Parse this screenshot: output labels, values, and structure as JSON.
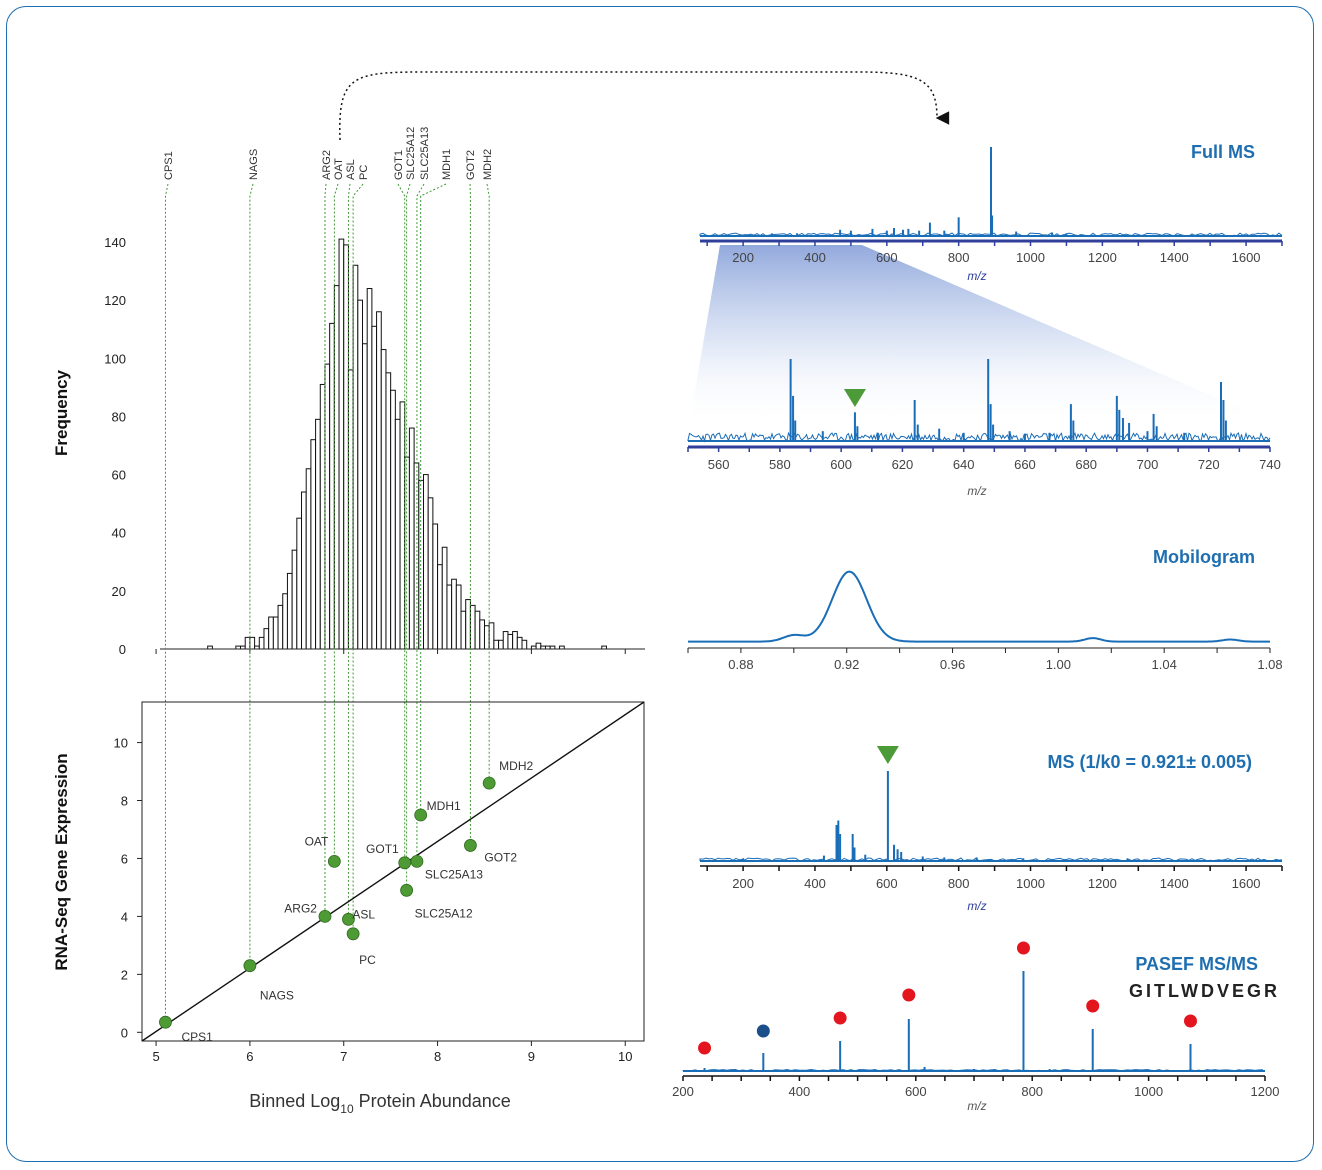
{
  "chart_data": [
    {
      "id": "histogram",
      "type": "bar",
      "ylabel": "Frequency",
      "xlim": [
        4.85,
        10.2
      ],
      "ylim": [
        0,
        140
      ],
      "yticks": [
        0,
        20,
        40,
        60,
        80,
        100,
        120,
        140
      ],
      "bin_start": 5.55,
      "bin_width": 0.05,
      "values": [
        1,
        0,
        0,
        0,
        0,
        0,
        1,
        1,
        4,
        4,
        1,
        4,
        7,
        11,
        11,
        15,
        19,
        26,
        34,
        45,
        54,
        62,
        72,
        79,
        91,
        98,
        112,
        125,
        141,
        139,
        96,
        132,
        120,
        105,
        124,
        111,
        116,
        103,
        95,
        89,
        79,
        85,
        66,
        76,
        64,
        58,
        60,
        52,
        43,
        29,
        35,
        22,
        24,
        22,
        13,
        17,
        15,
        13,
        10,
        8,
        9,
        3,
        3,
        6,
        5,
        6,
        4,
        3,
        0,
        1,
        2,
        1,
        1,
        1,
        0,
        1,
        0,
        0,
        0,
        0,
        0,
        0,
        0,
        0,
        1
      ],
      "proteins": [
        {
          "name": "CPS1",
          "x": 5.1
        },
        {
          "name": "NAGS",
          "x": 6.0
        },
        {
          "name": "ARG2",
          "x": 6.8
        },
        {
          "name": "OAT",
          "x": 6.9
        },
        {
          "name": "ASL",
          "x": 7.05
        },
        {
          "name": "PC",
          "x": 7.1
        },
        {
          "name": "GOT1",
          "x": 7.65
        },
        {
          "name": "SLC25A12",
          "x": 7.67
        },
        {
          "name": "SLC25A13",
          "x": 7.78
        },
        {
          "name": "MDH1",
          "x": 7.82
        },
        {
          "name": "GOT2",
          "x": 8.35
        },
        {
          "name": "MDH2",
          "x": 8.55
        }
      ]
    },
    {
      "id": "scatter",
      "type": "scatter",
      "xlabel_main": "Binned Log",
      "xlabel_sub": "10",
      "xlabel_tail": " Protein Abundance",
      "ylabel": "RNA-Seq Gene Expression",
      "xlim": [
        4.85,
        10.2
      ],
      "ylim": [
        -0.3,
        11.4
      ],
      "xticks": [
        5,
        6,
        7,
        8,
        9,
        10
      ],
      "yticks": [
        0,
        2,
        4,
        6,
        8,
        10
      ],
      "fit_line": [
        [
          4.85,
          -0.3
        ],
        [
          10.2,
          11.4
        ]
      ],
      "points": [
        {
          "name": "CPS1",
          "x": 5.1,
          "y": 0.35
        },
        {
          "name": "NAGS",
          "x": 6.0,
          "y": 2.3
        },
        {
          "name": "ARG2",
          "x": 6.8,
          "y": 4.0
        },
        {
          "name": "OAT",
          "x": 6.9,
          "y": 5.9
        },
        {
          "name": "ASL",
          "x": 7.05,
          "y": 3.9
        },
        {
          "name": "PC",
          "x": 7.1,
          "y": 3.4
        },
        {
          "name": "GOT1",
          "x": 7.65,
          "y": 5.85
        },
        {
          "name": "SLC25A12",
          "x": 7.67,
          "y": 4.9
        },
        {
          "name": "SLC25A13",
          "x": 7.78,
          "y": 5.9
        },
        {
          "name": "MDH1",
          "x": 7.82,
          "y": 7.5
        },
        {
          "name": "GOT2",
          "x": 8.35,
          "y": 6.45
        },
        {
          "name": "MDH2",
          "x": 8.55,
          "y": 8.6
        }
      ]
    },
    {
      "id": "full-ms",
      "type": "line",
      "title": "Full MS",
      "xlabel": "m/z",
      "xlim": [
        80,
        1700
      ],
      "xticks": [
        200,
        400,
        600,
        800,
        1000,
        1200,
        1400,
        1600
      ],
      "peaks": [
        [
          890,
          1.0
        ],
        [
          893,
          0.23
        ],
        [
          800,
          0.21
        ],
        [
          720,
          0.15
        ],
        [
          620,
          0.09
        ],
        [
          645,
          0.07
        ],
        [
          560,
          0.08
        ],
        [
          500,
          0.06
        ],
        [
          470,
          0.07
        ],
        [
          660,
          0.08
        ],
        [
          600,
          0.06
        ],
        [
          690,
          0.06
        ],
        [
          760,
          0.06
        ],
        [
          960,
          0.05
        ],
        [
          1060,
          0.04
        ],
        [
          280,
          0.03
        ],
        [
          350,
          0.03
        ],
        [
          1100,
          0.03
        ]
      ]
    },
    {
      "id": "zoom-ms",
      "type": "line",
      "xlabel": "m/z",
      "xlim": [
        550,
        740
      ],
      "xticks": [
        560,
        580,
        600,
        620,
        640,
        660,
        680,
        700,
        720,
        740
      ],
      "peaks": [
        [
          583.5,
          1.0
        ],
        [
          584.3,
          0.55
        ],
        [
          585,
          0.25
        ],
        [
          604.5,
          0.35
        ],
        [
          605.3,
          0.18
        ],
        [
          624,
          0.5
        ],
        [
          625,
          0.2
        ],
        [
          632,
          0.15
        ],
        [
          648,
          1.0
        ],
        [
          648.8,
          0.45
        ],
        [
          649.6,
          0.2
        ],
        [
          675,
          0.45
        ],
        [
          675.8,
          0.25
        ],
        [
          690,
          0.55
        ],
        [
          690.8,
          0.38
        ],
        [
          692,
          0.28
        ],
        [
          694,
          0.22
        ],
        [
          702,
          0.33
        ],
        [
          703,
          0.18
        ],
        [
          724,
          0.72
        ],
        [
          724.8,
          0.5
        ],
        [
          725.6,
          0.25
        ],
        [
          594,
          0.12
        ],
        [
          612,
          0.1
        ],
        [
          655,
          0.12
        ],
        [
          668,
          0.1
        ],
        [
          712,
          0.1
        ],
        [
          640,
          0.1
        ],
        [
          660,
          0.09
        ],
        [
          700,
          0.12
        ]
      ],
      "marker_x": 604.5
    },
    {
      "id": "mobilogram",
      "type": "line",
      "title": "Mobilogram",
      "xlim": [
        0.86,
        1.08
      ],
      "xticks": [
        "0.88",
        "0.92",
        "0.96",
        "1.00",
        "1.04",
        "1.08"
      ],
      "peaks": [
        [
          0.921,
          1.0,
          0.0065
        ],
        [
          0.9,
          0.09,
          0.004
        ],
        [
          1.013,
          0.05,
          0.003
        ],
        [
          1.065,
          0.03,
          0.003
        ]
      ]
    },
    {
      "id": "ms-slice",
      "type": "line",
      "title": "MS (1/k0 = 0.921± 0.005)",
      "xlabel": "m/z",
      "xlim": [
        80,
        1700
      ],
      "xticks": [
        200,
        400,
        600,
        800,
        1000,
        1200,
        1400,
        1600
      ],
      "peaks": [
        [
          603,
          1.0
        ],
        [
          460,
          0.4
        ],
        [
          465,
          0.45
        ],
        [
          470,
          0.3
        ],
        [
          505,
          0.3
        ],
        [
          510,
          0.15
        ],
        [
          620,
          0.18
        ],
        [
          630,
          0.13
        ],
        [
          640,
          0.1
        ],
        [
          425,
          0.06
        ],
        [
          540,
          0.07
        ],
        [
          700,
          0.05
        ],
        [
          760,
          0.04
        ],
        [
          850,
          0.04
        ],
        [
          980,
          0.03
        ],
        [
          1270,
          0.03
        ],
        [
          200,
          0.03
        ],
        [
          1100,
          0.02
        ]
      ],
      "marker_x": 603
    },
    {
      "id": "msms",
      "type": "line",
      "title": "PASEF MS/MS",
      "sequence": "GITLWDVEGR",
      "xlabel": "m/z",
      "xlim": [
        200,
        1200
      ],
      "xticks": [
        200,
        400,
        600,
        800,
        1000,
        1200
      ],
      "peaks": [
        [
          237,
          0.03
        ],
        [
          338,
          0.18
        ],
        [
          470,
          0.3
        ],
        [
          588,
          0.52
        ],
        [
          785,
          1.0
        ],
        [
          904,
          0.42
        ],
        [
          1072,
          0.27
        ],
        [
          290,
          0.02
        ],
        [
          615,
          0.04
        ],
        [
          700,
          0.02
        ],
        [
          830,
          0.02
        ]
      ],
      "ions": [
        {
          "x": 237,
          "y": 0.15,
          "color": "#e3151f"
        },
        {
          "x": 338,
          "y": 0.32,
          "color": "#1b4f8a"
        },
        {
          "x": 470,
          "y": 0.45,
          "color": "#e3151f"
        },
        {
          "x": 588,
          "y": 0.68,
          "color": "#e3151f"
        },
        {
          "x": 785,
          "y": 1.15,
          "color": "#e3151f"
        },
        {
          "x": 904,
          "y": 0.57,
          "color": "#e3151f"
        },
        {
          "x": 1072,
          "y": 0.42,
          "color": "#e3151f"
        }
      ]
    }
  ],
  "colors": {
    "frame": "#1f6fb0",
    "spectrum": "#1a6db7",
    "dot": "#4e9a34",
    "guide": "#3f9a33",
    "marker": "#4d9a38",
    "title": "#1f6fb0",
    "ms_axis": "#2f3f9a"
  }
}
